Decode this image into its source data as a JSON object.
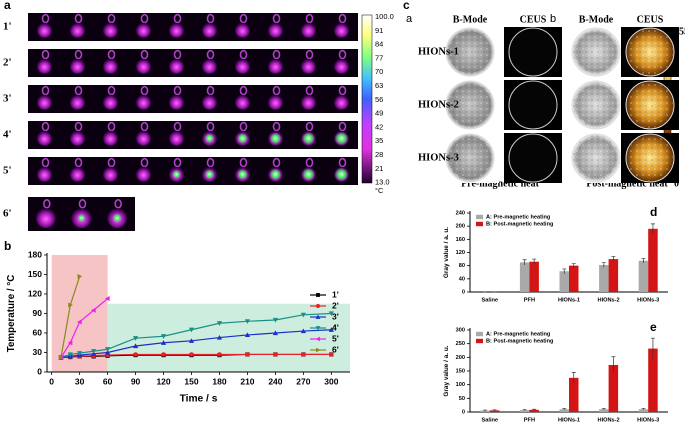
{
  "panels": {
    "a": {
      "letter": "a",
      "rows": [
        "1'",
        "2'",
        "3'",
        "4'",
        "5'",
        "6'"
      ],
      "colorbar": {
        "labels": [
          "100.0",
          "91",
          "84",
          "77",
          "70",
          "63",
          "56",
          "49",
          "42",
          "35",
          "28",
          "21",
          "13.0"
        ],
        "unit": "°C"
      }
    },
    "c": {
      "letter": "c",
      "sub": [
        "a",
        "b"
      ],
      "headers": [
        "B-Mode",
        "CEUS",
        "B-Mode",
        "CEUS"
      ],
      "rows": [
        "HIONs-1",
        "HIONs-2",
        "HIONs-3"
      ],
      "captions": [
        "Pre-magnetic heat",
        "Post-magnetic heat"
      ],
      "colorbar": [
        "255",
        "0"
      ]
    }
  },
  "chart_data": [
    {
      "type": "line",
      "panel": "b",
      "xlabel": "Time / s",
      "ylabel": "Temperature / °C",
      "x": [
        10,
        20,
        30,
        45,
        60,
        90,
        120,
        150,
        180,
        210,
        240,
        270,
        300
      ],
      "xlim": [
        -5,
        320
      ],
      "ylim": [
        0,
        180
      ],
      "xticks": [
        0,
        30,
        60,
        90,
        120,
        150,
        180,
        210,
        240,
        270,
        300
      ],
      "yticks": [
        0,
        30,
        60,
        90,
        120,
        150,
        180
      ],
      "regions": [
        {
          "x": [
            0,
            60
          ],
          "y": [
            0,
            180
          ],
          "color": "#f6c4c4"
        },
        {
          "x": [
            60,
            320
          ],
          "y": [
            0,
            105
          ],
          "color": "#cdeede"
        }
      ],
      "legend": "right",
      "series": [
        {
          "name": "1'",
          "color": "#000000",
          "marker": "square",
          "values": [
            22,
            23,
            24,
            24,
            25,
            26,
            26,
            26,
            26,
            27,
            27,
            27,
            27
          ]
        },
        {
          "name": "2'",
          "color": "#e8202a",
          "marker": "circle",
          "values": [
            22,
            23,
            24,
            25,
            26,
            27,
            27,
            27,
            27,
            27,
            27,
            27,
            27
          ]
        },
        {
          "name": "3'",
          "color": "#1a2fcc",
          "marker": "triangle-up",
          "values": [
            22,
            24,
            26,
            28,
            30,
            40,
            45,
            48,
            53,
            57,
            60,
            63,
            65
          ]
        },
        {
          "name": "4'",
          "color": "#1a8f86",
          "marker": "triangle-down",
          "values": [
            23,
            27,
            29,
            32,
            35,
            52,
            55,
            65,
            75,
            78,
            80,
            88,
            90
          ]
        },
        {
          "name": "5'",
          "color": "#ee22ee",
          "marker": "triangle-left",
          "values": [
            22,
            45,
            77,
            95,
            113,
            null,
            null,
            null,
            null,
            null,
            null,
            null,
            null
          ]
        },
        {
          "name": "6'",
          "color": "#8a8a1a",
          "marker": "triangle-right",
          "values": [
            22,
            103,
            147,
            null,
            null,
            null,
            null,
            null,
            null,
            null,
            null,
            null,
            null
          ]
        }
      ]
    },
    {
      "type": "bar",
      "panel": "d",
      "ylabel": "Gray value / a. u.",
      "categories": [
        "Saline",
        "PFH",
        "HIONs-1",
        "HIONs-2",
        "HIONs-3"
      ],
      "ylim": [
        0,
        240
      ],
      "yticks": [
        0,
        40,
        80,
        120,
        160,
        200,
        240
      ],
      "legend": "top-left",
      "series": [
        {
          "name": "A: Pre-magnetic heating",
          "color": "#a9a9a9",
          "values": [
            0,
            90,
            63,
            82,
            95
          ],
          "errors": [
            0,
            8,
            7,
            7,
            7
          ]
        },
        {
          "name": "B: Post-magnetic heating",
          "color": "#d41515",
          "values": [
            0,
            92,
            80,
            100,
            192
          ],
          "errors": [
            0,
            8,
            6,
            8,
            15
          ]
        }
      ]
    },
    {
      "type": "bar",
      "panel": "e",
      "ylabel": "Gray value / a. u.",
      "categories": [
        "Saline",
        "PFH",
        "HIONs-1",
        "HIONs-2",
        "HIONs-3"
      ],
      "ylim": [
        0,
        300
      ],
      "yticks": [
        0,
        50,
        100,
        150,
        200,
        250,
        300
      ],
      "legend": "top-left",
      "series": [
        {
          "name": "A: Pre-magnetic heating",
          "color": "#a9a9a9",
          "values": [
            5,
            7,
            10,
            10,
            10
          ],
          "errors": [
            2,
            2,
            3,
            3,
            3
          ]
        },
        {
          "name": "B: Post-magnetic heating",
          "color": "#d41515",
          "values": [
            6,
            8,
            125,
            172,
            232
          ],
          "errors": [
            2,
            2,
            20,
            30,
            38
          ]
        }
      ]
    }
  ]
}
